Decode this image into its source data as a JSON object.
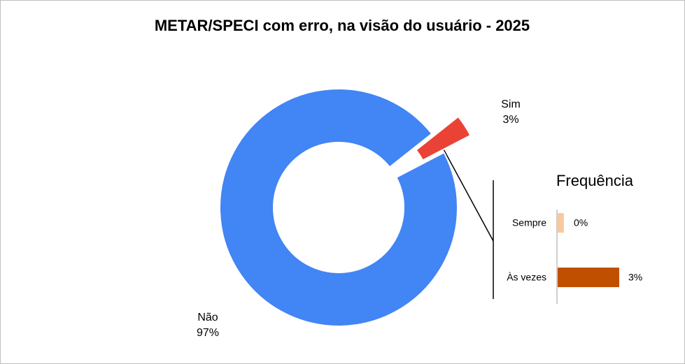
{
  "chart_data": [
    {
      "type": "donut",
      "title": "METAR/SPECI com erro, na visão do usuário - 2025",
      "categories": [
        "Não",
        "Sim"
      ],
      "values": [
        97,
        3
      ],
      "value_labels": [
        "97%",
        "3%"
      ],
      "colors": [
        "#4285f4",
        "#ea4335"
      ]
    },
    {
      "type": "bar",
      "title": "Frequência",
      "categories": [
        "Sempre",
        "Às vezes"
      ],
      "values": [
        0.3,
        3
      ],
      "value_labels": [
        "0%",
        "3%"
      ],
      "colors": [
        "#f9c89b",
        "#c05000"
      ]
    }
  ]
}
